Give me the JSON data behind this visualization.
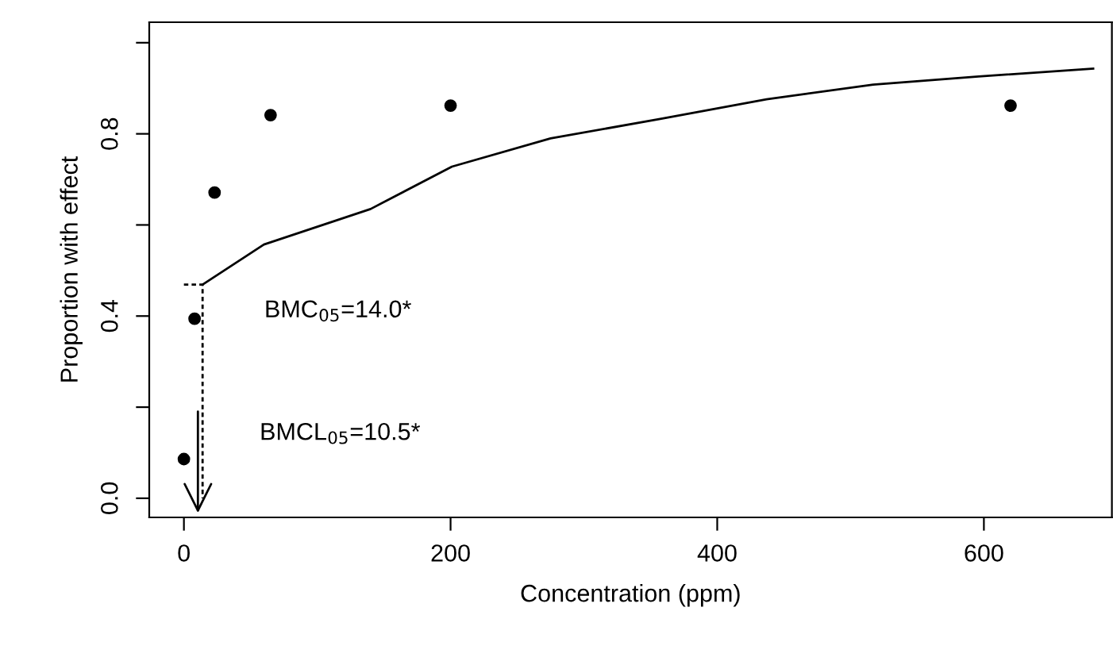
{
  "chart_data": {
    "type": "scatter",
    "xlabel": "Concentration (ppm)",
    "ylabel": "Proportion with effect",
    "series": [
      {
        "color": "#000000",
        "marker": "circle",
        "x": [
          0,
          8,
          23,
          65,
          200,
          620
        ],
        "values": [
          0.086,
          0.394,
          0.671,
          0.841,
          0.862,
          0.862
        ]
      },
      {
        "type": "line",
        "color": "#000000",
        "line_style": "solid",
        "x": [
          14,
          60,
          140,
          201,
          275,
          358,
          437,
          517,
          596,
          682
        ],
        "values": [
          0.469,
          0.557,
          0.635,
          0.728,
          0.79,
          0.833,
          0.876,
          0.908,
          0.926,
          0.943
        ]
      },
      {
        "type": "line",
        "color": "#000000",
        "line_style": "dotted",
        "x": [
          0,
          14,
          14
        ],
        "values": [
          0.469,
          0.469,
          0
        ]
      }
    ],
    "annotations": [
      {
        "text": "BMC$_{05}$=14.0*",
        "x": 14,
        "y": 0.469
      },
      {
        "text": "BMCL$_{05}$=10.5*",
        "x": 10.5,
        "y": 0.2
      }
    ],
    "xlim": [
      -26,
      696
    ],
    "ylim": [
      -0.042,
      1.045
    ],
    "xticks": [
      0,
      200,
      400,
      600
    ],
    "yticks": [
      {
        "value": 0,
        "label": "0.0"
      },
      {
        "value": 0.2,
        "label": null
      },
      {
        "value": 0.4,
        "label": "0.4"
      },
      {
        "value": 0.6,
        "label": null
      },
      {
        "value": 0.8,
        "label": "0.8"
      },
      {
        "value": 1.0,
        "label": null
      }
    ],
    "grid": false,
    "legend": false
  }
}
